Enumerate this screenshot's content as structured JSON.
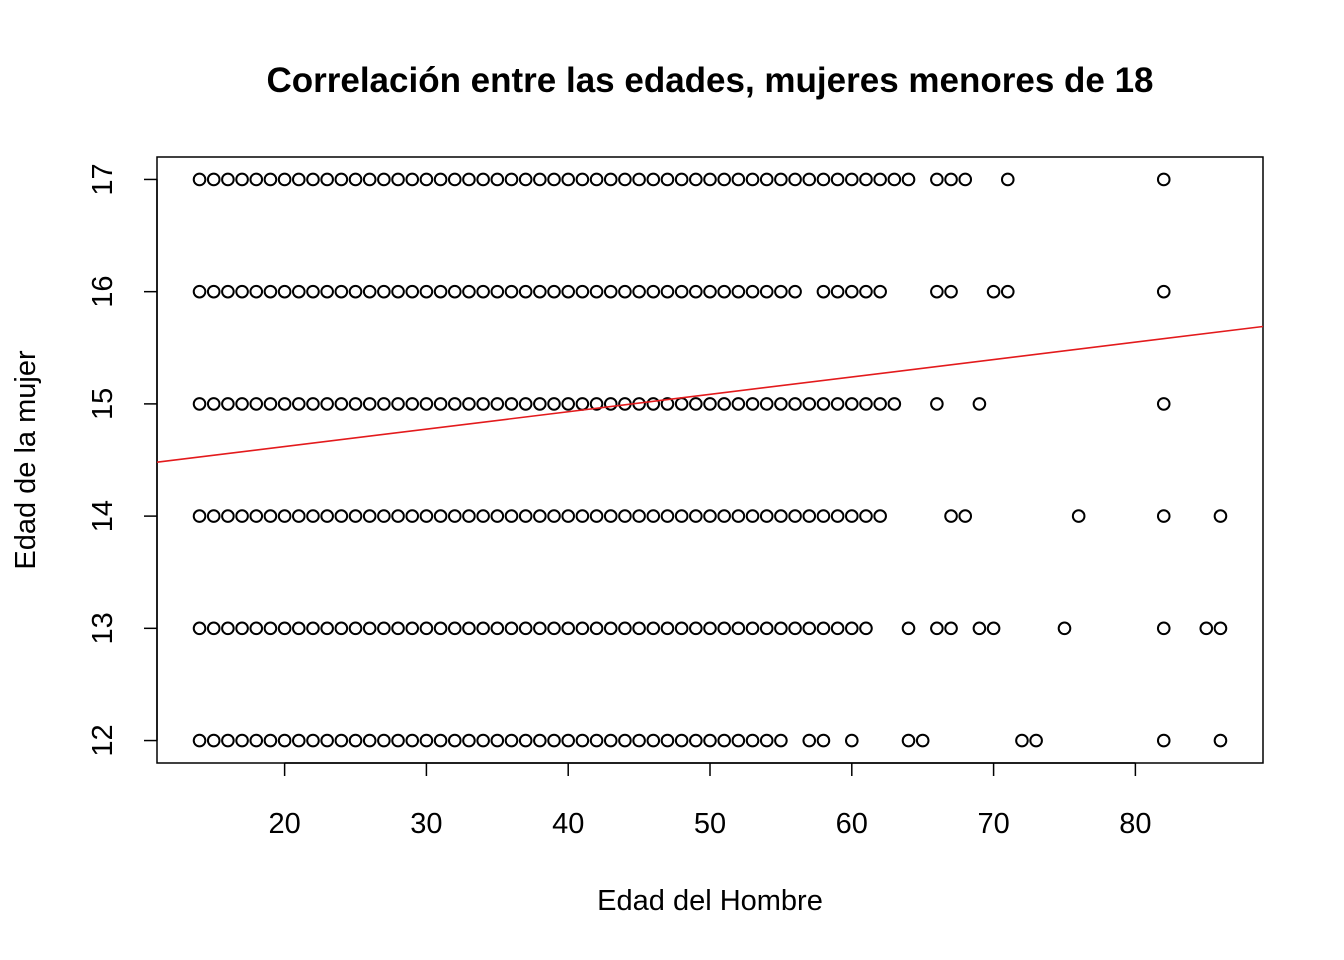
{
  "chart_data": {
    "type": "scatter",
    "title": "Correlación entre las edades, mujeres menores de 18",
    "xlabel": "Edad del Hombre",
    "ylabel": "Edad de la mujer",
    "xlim": [
      11,
      89
    ],
    "ylim": [
      11.8,
      17.2
    ],
    "xticks": [
      20,
      30,
      40,
      50,
      60,
      70,
      80
    ],
    "yticks": [
      12,
      13,
      14,
      15,
      16,
      17
    ],
    "grid": false,
    "legend": "none",
    "colors": {
      "points": "#000000",
      "regression_line": "#e31a1c"
    },
    "regression_line": {
      "intercept": 14.31,
      "slope": 0.0155
    },
    "rows": [
      {
        "y": 17,
        "x_range": [
          14,
          64
        ],
        "x_extra": [
          66,
          67,
          68,
          71,
          82
        ]
      },
      {
        "y": 16,
        "x_range": [
          14,
          56
        ],
        "x_extra": [
          58,
          59,
          60,
          61,
          62,
          66,
          67,
          70,
          71,
          82
        ]
      },
      {
        "y": 15,
        "x_range": [
          14,
          63
        ],
        "x_extra": [
          66,
          69,
          82
        ]
      },
      {
        "y": 14,
        "x_range": [
          14,
          62
        ],
        "x_extra": [
          67,
          68,
          76,
          82,
          86
        ]
      },
      {
        "y": 13,
        "x_range": [
          14,
          61
        ],
        "x_extra": [
          64,
          66,
          67,
          69,
          70,
          75,
          82,
          85,
          86
        ]
      },
      {
        "y": 12,
        "x_range": [
          14,
          55
        ],
        "x_extra": [
          57,
          58,
          60,
          64,
          65,
          72,
          73,
          82,
          86
        ]
      }
    ]
  }
}
